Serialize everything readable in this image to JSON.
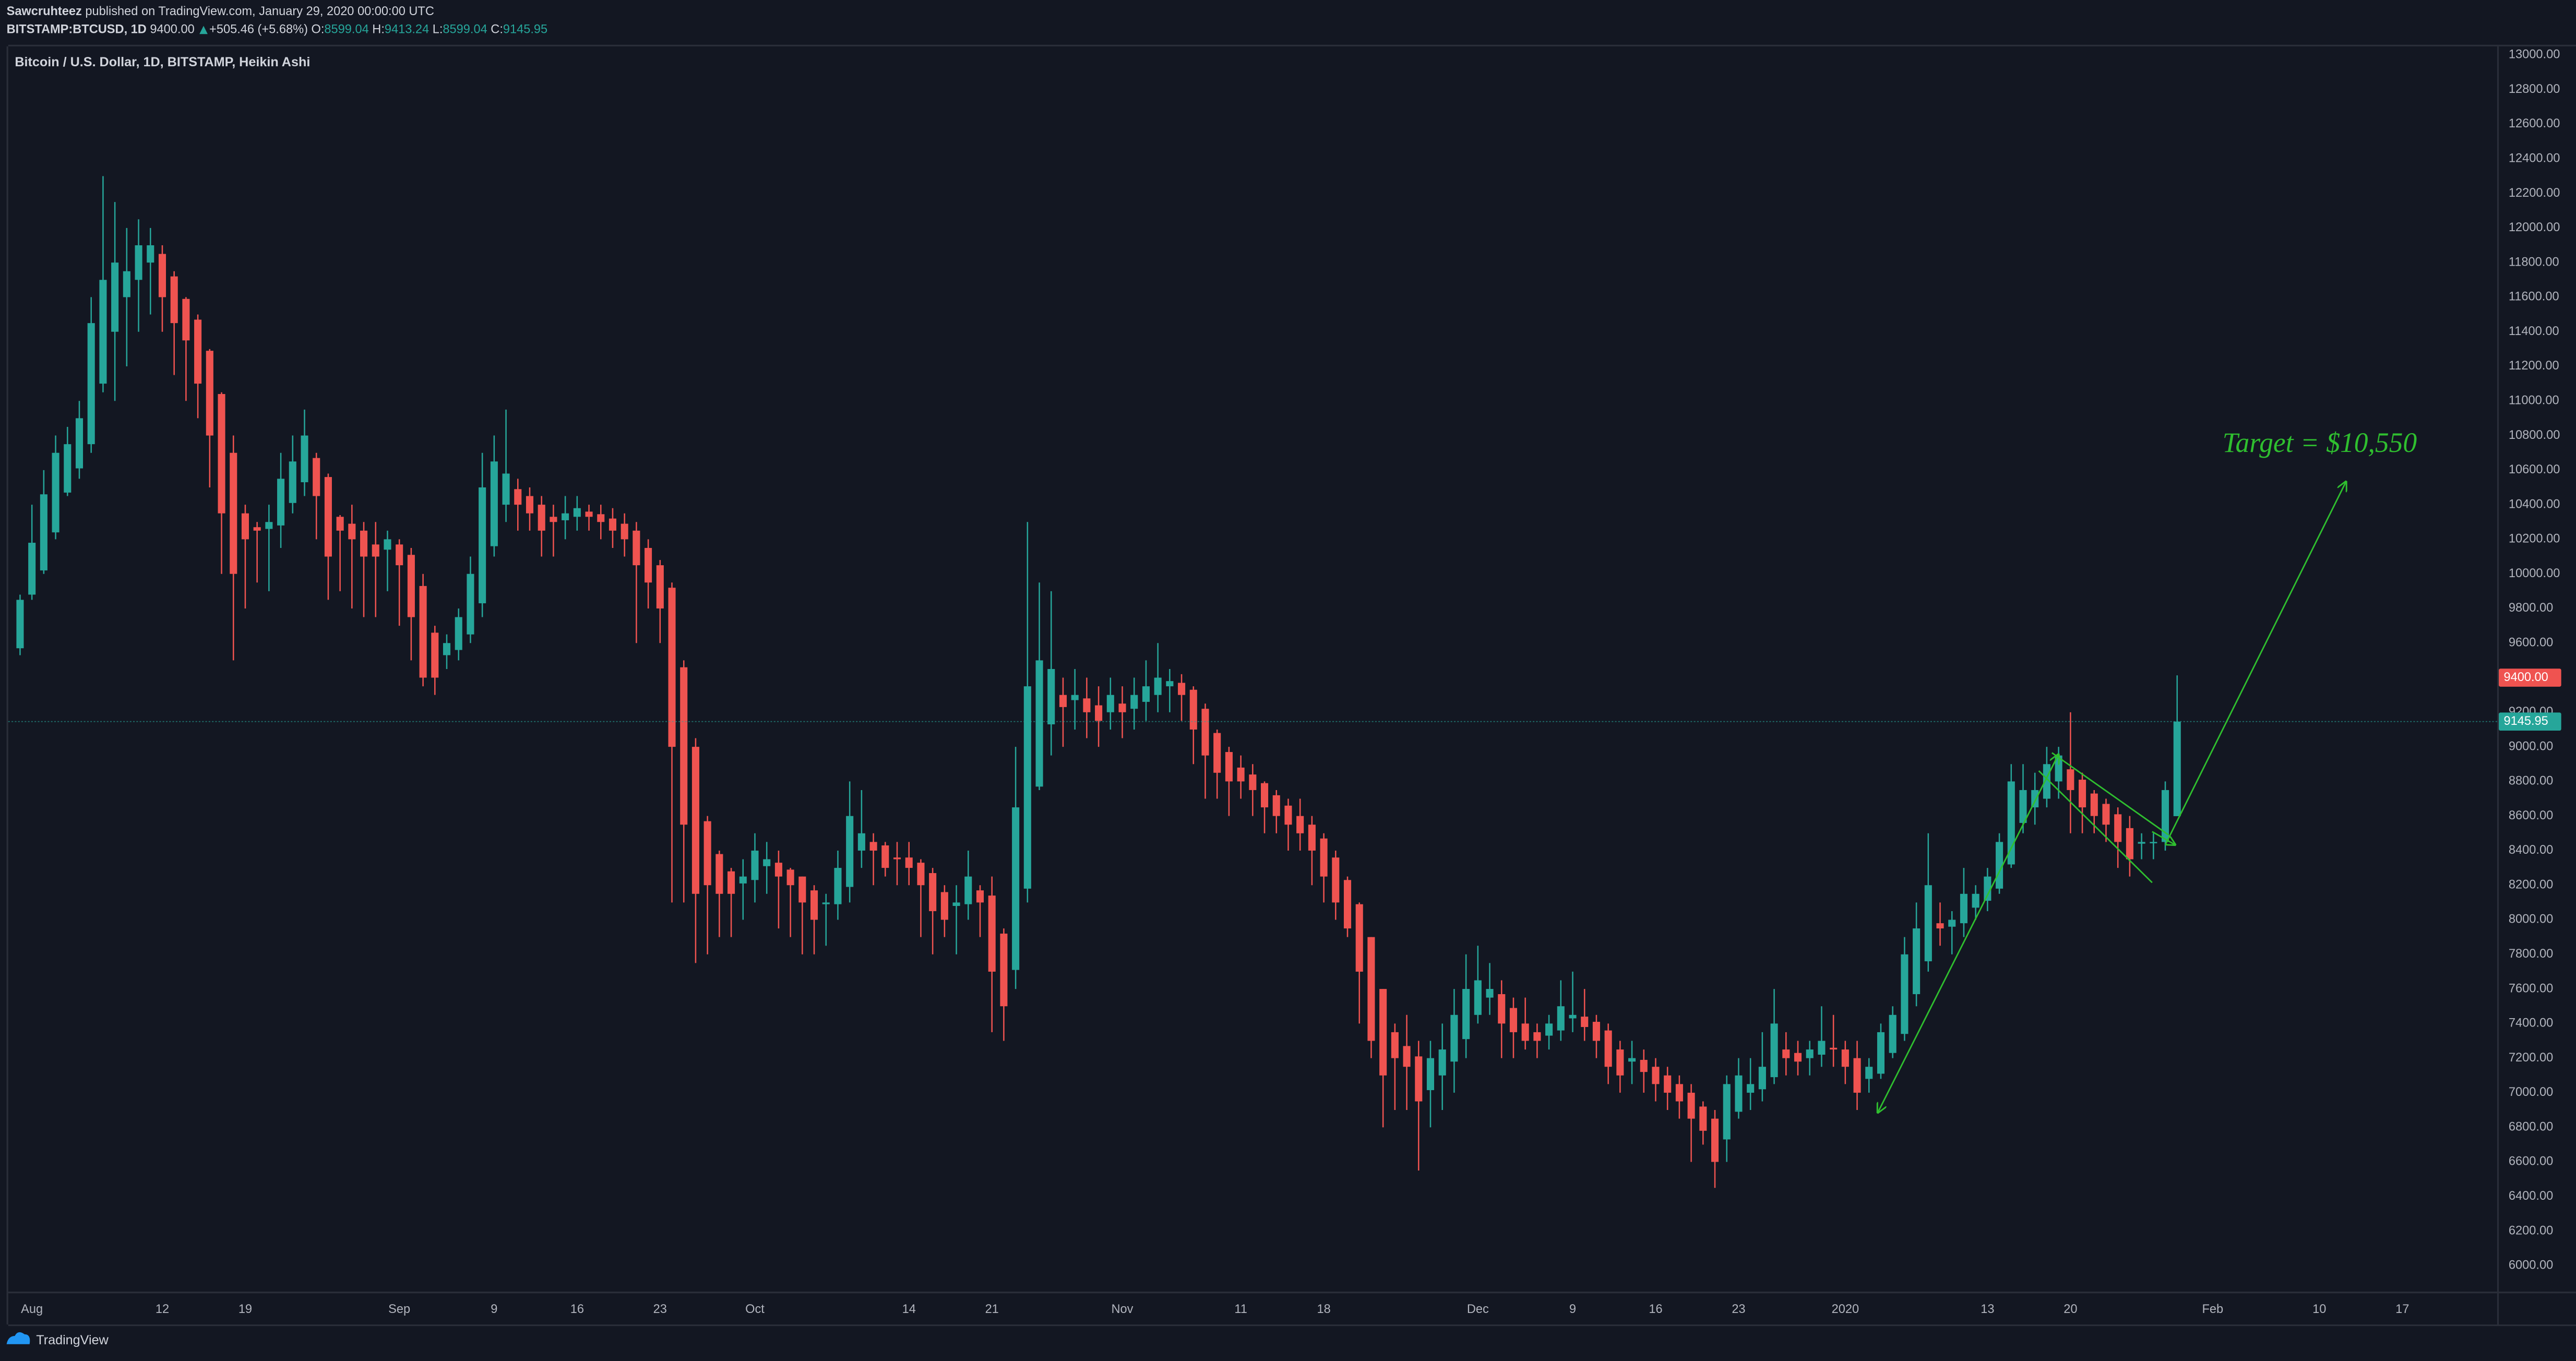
{
  "header": {
    "author": "Sawcruhteez",
    "published": "published on TradingView.com, January 29, 2020 00:00:00 UTC",
    "symbol": "BITSTAMP:BTCUSD, 1D",
    "price": "9400.00",
    "change": "+505.46 (+5.68%)",
    "ohlc": [
      {
        "key": "O:",
        "value": "8599.04"
      },
      {
        "key": "H:",
        "value": "9413.24"
      },
      {
        "key": "L:",
        "value": "8599.04"
      },
      {
        "key": "C:",
        "value": "9145.95"
      }
    ]
  },
  "footer": {
    "brand": "TradingView"
  },
  "chart_data": {
    "type": "candlestick",
    "title": "Bitcoin / U.S. Dollar, 1D, BITSTAMP, Heikin Ashi",
    "up_color": "#26a69a",
    "down_color": "#ef5350",
    "x": [
      "2019-07-31",
      "2019-08-01",
      "2019-08-02",
      "2019-08-03",
      "2019-08-04",
      "2019-08-05",
      "2019-08-06",
      "2019-08-07",
      "2019-08-08",
      "2019-08-09",
      "2019-08-10",
      "2019-08-11",
      "2019-08-12",
      "2019-08-13",
      "2019-08-14",
      "2019-08-15",
      "2019-08-16",
      "2019-08-17",
      "2019-08-18",
      "2019-08-19",
      "2019-08-20",
      "2019-08-21",
      "2019-08-22",
      "2019-08-23",
      "2019-08-24",
      "2019-08-25",
      "2019-08-26",
      "2019-08-27",
      "2019-08-28",
      "2019-08-29",
      "2019-08-30",
      "2019-08-31",
      "2019-09-01",
      "2019-09-02",
      "2019-09-03",
      "2019-09-04",
      "2019-09-05",
      "2019-09-06",
      "2019-09-07",
      "2019-09-08",
      "2019-09-09",
      "2019-09-10",
      "2019-09-11",
      "2019-09-12",
      "2019-09-13",
      "2019-09-14",
      "2019-09-15",
      "2019-09-16",
      "2019-09-17",
      "2019-09-18",
      "2019-09-19",
      "2019-09-20",
      "2019-09-21",
      "2019-09-22",
      "2019-09-23",
      "2019-09-24",
      "2019-09-25",
      "2019-09-26",
      "2019-09-27",
      "2019-09-28",
      "2019-09-29",
      "2019-09-30",
      "2019-10-01",
      "2019-10-02",
      "2019-10-03",
      "2019-10-04",
      "2019-10-05",
      "2019-10-06",
      "2019-10-07",
      "2019-10-08",
      "2019-10-09",
      "2019-10-10",
      "2019-10-11",
      "2019-10-12",
      "2019-10-13",
      "2019-10-14",
      "2019-10-15",
      "2019-10-16",
      "2019-10-17",
      "2019-10-18",
      "2019-10-19",
      "2019-10-20",
      "2019-10-21",
      "2019-10-22",
      "2019-10-23",
      "2019-10-24",
      "2019-10-25",
      "2019-10-26",
      "2019-10-27",
      "2019-10-28",
      "2019-10-29",
      "2019-10-30",
      "2019-10-31",
      "2019-11-01",
      "2019-11-02",
      "2019-11-03",
      "2019-11-04",
      "2019-11-05",
      "2019-11-06",
      "2019-11-07",
      "2019-11-08",
      "2019-11-09",
      "2019-11-10",
      "2019-11-11",
      "2019-11-12",
      "2019-11-13",
      "2019-11-14",
      "2019-11-15",
      "2019-11-16",
      "2019-11-17",
      "2019-11-18",
      "2019-11-19",
      "2019-11-20",
      "2019-11-21",
      "2019-11-22",
      "2019-11-23",
      "2019-11-24",
      "2019-11-25",
      "2019-11-26",
      "2019-11-27",
      "2019-11-28",
      "2019-11-29",
      "2019-11-30",
      "2019-12-01",
      "2019-12-02",
      "2019-12-03",
      "2019-12-04",
      "2019-12-05",
      "2019-12-06",
      "2019-12-07",
      "2019-12-08",
      "2019-12-09",
      "2019-12-10",
      "2019-12-11",
      "2019-12-12",
      "2019-12-13",
      "2019-12-14",
      "2019-12-15",
      "2019-12-16",
      "2019-12-17",
      "2019-12-18",
      "2019-12-19",
      "2019-12-20",
      "2019-12-21",
      "2019-12-22",
      "2019-12-23",
      "2019-12-24",
      "2019-12-25",
      "2019-12-26",
      "2019-12-27",
      "2019-12-28",
      "2019-12-29",
      "2019-12-30",
      "2019-12-31",
      "2020-01-01",
      "2020-01-02",
      "2020-01-03",
      "2020-01-04",
      "2020-01-05",
      "2020-01-06",
      "2020-01-07",
      "2020-01-08",
      "2020-01-09",
      "2020-01-10",
      "2020-01-11",
      "2020-01-12",
      "2020-01-13",
      "2020-01-14",
      "2020-01-15",
      "2020-01-16",
      "2020-01-17",
      "2020-01-18",
      "2020-01-19",
      "2020-01-20",
      "2020-01-21",
      "2020-01-22",
      "2020-01-23",
      "2020-01-24",
      "2020-01-25",
      "2020-01-26",
      "2020-01-27",
      "2020-01-28",
      "2020-01-29"
    ],
    "open": [
      9570,
      9880,
      10020,
      10240,
      10470,
      10610,
      10750,
      11100,
      11400,
      11600,
      11700,
      11800,
      11850,
      11720,
      11590,
      11470,
      11290,
      11040,
      10700,
      10350,
      10270,
      10260,
      10280,
      10410,
      10530,
      10670,
      10560,
      10330,
      10290,
      10250,
      10170,
      10140,
      10170,
      10110,
      9930,
      9660,
      9530,
      9560,
      9650,
      9830,
      10160,
      10400,
      10490,
      10450,
      10400,
      10330,
      10310,
      10330,
      10360,
      10345,
      10320,
      10290,
      10250,
      10150,
      10050,
      9920,
      9460,
      9000,
      8570,
      8380,
      8280,
      8210,
      8230,
      8310,
      8330,
      8290,
      8250,
      8170,
      8090,
      8090,
      8190,
      8400,
      8450,
      8430,
      8360,
      8360,
      8330,
      8270,
      8160,
      8080,
      8090,
      8170,
      8140,
      7920,
      7710,
      8180,
      8770,
      9130,
      9300,
      9270,
      9280,
      9240,
      9200,
      9250,
      9220,
      9260,
      9300,
      9350,
      9370,
      9330,
      9220,
      9080,
      8970,
      8880,
      8840,
      8790,
      8720,
      8660,
      8600,
      8550,
      8470,
      8360,
      8230,
      8090,
      7900,
      7600,
      7350,
      7270,
      7210,
      7015,
      7100,
      7180,
      7310,
      7450,
      7550,
      7570,
      7490,
      7400,
      7350,
      7330,
      7360,
      7430,
      7440,
      7410,
      7360,
      7250,
      7180,
      7190,
      7150,
      7100,
      7050,
      7000,
      6920,
      6850,
      6730,
      6890,
      7000,
      7020,
      7090,
      7250,
      7230,
      7200,
      7220,
      7260,
      7250,
      7200,
      7080,
      7110,
      7230,
      7340,
      7570,
      7760,
      7980,
      7960,
      7980,
      8070,
      8110,
      8180,
      8320,
      8560,
      8650,
      8700,
      8800,
      8870,
      8810,
      8730,
      8670,
      8610,
      8530,
      8440,
      8445,
      8450,
      8599.04
    ],
    "high": [
      9880,
      10400,
      10600,
      10800,
      10850,
      11000,
      11600,
      12300,
      12150,
      12000,
      12050,
      12000,
      11900,
      11750,
      11600,
      11500,
      11300,
      11050,
      10800,
      10400,
      10300,
      10400,
      10700,
      10800,
      10950,
      10700,
      10580,
      10340,
      10400,
      10300,
      10300,
      10250,
      10200,
      10150,
      10000,
      9700,
      9650,
      9800,
      10100,
      10700,
      10800,
      10950,
      10550,
      10500,
      10450,
      10400,
      10450,
      10450,
      10400,
      10400,
      10380,
      10350,
      10300,
      10200,
      10080,
      9950,
      9500,
      9050,
      8600,
      8400,
      8300,
      8350,
      8500,
      8450,
      8400,
      8300,
      8250,
      8200,
      8150,
      8400,
      8800,
      8750,
      8500,
      8450,
      8450,
      8450,
      8350,
      8300,
      8200,
      8200,
      8400,
      8200,
      8250,
      7950,
      9000,
      10300,
      9950,
      9900,
      9400,
      9450,
      9400,
      9350,
      9400,
      9350,
      9400,
      9500,
      9600,
      9450,
      9420,
      9350,
      9250,
      9100,
      9000,
      8950,
      8900,
      8800,
      8750,
      8700,
      8700,
      8600,
      8500,
      8400,
      8250,
      8100,
      7900,
      7600,
      7400,
      7450,
      7300,
      7300,
      7400,
      7600,
      7800,
      7850,
      7750,
      7650,
      7550,
      7550,
      7400,
      7450,
      7650,
      7700,
      7600,
      7450,
      7400,
      7300,
      7300,
      7250,
      7200,
      7150,
      7100,
      7050,
      6950,
      6900,
      7100,
      7200,
      7200,
      7350,
      7600,
      7350,
      7300,
      7300,
      7500,
      7450,
      7300,
      7300,
      7200,
      7400,
      7500,
      7900,
      8100,
      8500,
      8100,
      8050,
      8300,
      8200,
      8300,
      8500,
      8900,
      8900,
      8850,
      9000,
      9000,
      9200,
      8850,
      8750,
      8700,
      8650,
      8600,
      8500,
      8500,
      8800,
      9413.24
    ],
    "low": [
      9530,
      9850,
      10000,
      10200,
      10450,
      10550,
      10700,
      11050,
      11000,
      11200,
      11400,
      11500,
      11400,
      11150,
      11000,
      10900,
      10500,
      10000,
      9500,
      9800,
      9950,
      9900,
      10150,
      10350,
      10450,
      10200,
      9850,
      9900,
      9800,
      9750,
      9750,
      9900,
      9700,
      9500,
      9350,
      9300,
      9450,
      9500,
      9600,
      9750,
      10100,
      10300,
      10250,
      10250,
      10100,
      10100,
      10200,
      10250,
      10250,
      10200,
      10150,
      10100,
      9600,
      9800,
      9600,
      8100,
      8100,
      7750,
      7800,
      7900,
      7900,
      8000,
      8100,
      8150,
      7950,
      7900,
      7800,
      7800,
      7850,
      8000,
      8100,
      8300,
      8200,
      8250,
      8200,
      8200,
      7900,
      7800,
      7900,
      7800,
      8000,
      7900,
      7350,
      7300,
      7600,
      8100,
      8750,
      8950,
      9000,
      9100,
      9050,
      9000,
      9100,
      9050,
      9100,
      9150,
      9200,
      9200,
      9150,
      8900,
      8700,
      8700,
      8600,
      8700,
      8600,
      8500,
      8500,
      8400,
      8400,
      8200,
      8100,
      8000,
      7900,
      7400,
      7200,
      6800,
      6900,
      6900,
      6550,
      6800,
      6900,
      7000,
      7200,
      7400,
      7450,
      7200,
      7200,
      7250,
      7200,
      7250,
      7300,
      7350,
      7300,
      7200,
      7050,
      7000,
      7050,
      7000,
      6950,
      6900,
      6850,
      6600,
      6700,
      6450,
      6600,
      6850,
      6900,
      6950,
      7050,
      7100,
      7100,
      7100,
      7150,
      7150,
      7050,
      6900,
      7000,
      7080,
      7200,
      7300,
      7500,
      7700,
      7850,
      7800,
      7900,
      8000,
      8050,
      8150,
      8300,
      8500,
      8550,
      8650,
      8700,
      8500,
      8500,
      8500,
      8450,
      8300,
      8250,
      8350,
      8350,
      8400,
      8599.04
    ],
    "close": [
      9850,
      10180,
      10460,
      10700,
      10750,
      10900,
      11450,
      11700,
      11800,
      11750,
      11900,
      11900,
      11600,
      11450,
      11350,
      11100,
      10800,
      10350,
      10000,
      10200,
      10250,
      10300,
      10550,
      10650,
      10800,
      10450,
      10100,
      10250,
      10200,
      10100,
      10100,
      10200,
      10050,
      9750,
      9400,
      9400,
      9600,
      9750,
      10000,
      10500,
      10650,
      10580,
      10400,
      10350,
      10250,
      10300,
      10350,
      10380,
      10330,
      10300,
      10250,
      10200,
      10050,
      9950,
      9800,
      9000,
      8550,
      8150,
      8200,
      8150,
      8150,
      8250,
      8400,
      8350,
      8250,
      8200,
      8100,
      8000,
      8100,
      8300,
      8600,
      8500,
      8400,
      8300,
      8350,
      8300,
      8200,
      8050,
      8000,
      8100,
      8250,
      8100,
      7700,
      7500,
      8650,
      9350,
      9500,
      9450,
      9230,
      9300,
      9200,
      9150,
      9300,
      9200,
      9300,
      9350,
      9400,
      9380,
      9300,
      9100,
      8950,
      8850,
      8800,
      8800,
      8750,
      8650,
      8600,
      8550,
      8500,
      8400,
      8250,
      8100,
      7950,
      7700,
      7300,
      7100,
      7200,
      7150,
      6950,
      7200,
      7250,
      7450,
      7600,
      7650,
      7600,
      7400,
      7350,
      7300,
      7300,
      7400,
      7500,
      7450,
      7380,
      7300,
      7150,
      7100,
      7200,
      7120,
      7050,
      7000,
      6950,
      6850,
      6780,
      6600,
      7050,
      7100,
      7050,
      7150,
      7400,
      7200,
      7180,
      7250,
      7300,
      7250,
      7150,
      7000,
      7150,
      7350,
      7450,
      7800,
      7950,
      8200,
      7950,
      8000,
      8150,
      8150,
      8250,
      8450,
      8800,
      8750,
      8750,
      8900,
      8950,
      8750,
      8650,
      8600,
      8550,
      8450,
      8350,
      8450,
      8450,
      8750,
      9145.95
    ],
    "xlim": [
      "2019-07-30",
      "2020-02-25"
    ],
    "xticks": [
      {
        "value": "2019-08-01",
        "label": "Aug"
      },
      {
        "value": "2019-08-12",
        "label": "12"
      },
      {
        "value": "2019-08-19",
        "label": "19"
      },
      {
        "value": "2019-09-01",
        "label": "Sep"
      },
      {
        "value": "2019-09-09",
        "label": "9"
      },
      {
        "value": "2019-09-16",
        "label": "16"
      },
      {
        "value": "2019-09-23",
        "label": "23"
      },
      {
        "value": "2019-10-01",
        "label": "Oct"
      },
      {
        "value": "2019-10-14",
        "label": "14"
      },
      {
        "value": "2019-10-21",
        "label": "21"
      },
      {
        "value": "2019-11-01",
        "label": "Nov"
      },
      {
        "value": "2019-11-11",
        "label": "11"
      },
      {
        "value": "2019-11-18",
        "label": "18"
      },
      {
        "value": "2019-12-01",
        "label": "Dec"
      },
      {
        "value": "2019-12-09",
        "label": "9"
      },
      {
        "value": "2019-12-16",
        "label": "16"
      },
      {
        "value": "2019-12-23",
        "label": "23"
      },
      {
        "value": "2020-01-01",
        "label": "2020"
      },
      {
        "value": "2020-01-13",
        "label": "13"
      },
      {
        "value": "2020-01-20",
        "label": "20"
      },
      {
        "value": "2020-02-01",
        "label": "Feb"
      },
      {
        "value": "2020-02-10",
        "label": "10"
      },
      {
        "value": "2020-02-17",
        "label": "17"
      }
    ],
    "ylim": [
      5850,
      13050
    ],
    "yticks": [
      {
        "value": 13000,
        "label": "13000.00"
      },
      {
        "value": 12800,
        "label": "12800.00"
      },
      {
        "value": 12600,
        "label": "12600.00"
      },
      {
        "value": 12400,
        "label": "12400.00"
      },
      {
        "value": 12200,
        "label": "12200.00"
      },
      {
        "value": 12000,
        "label": "12000.00"
      },
      {
        "value": 11800,
        "label": "11800.00"
      },
      {
        "value": 11600,
        "label": "11600.00"
      },
      {
        "value": 11400,
        "label": "11400.00"
      },
      {
        "value": 11200,
        "label": "11200.00"
      },
      {
        "value": 11000,
        "label": "11000.00"
      },
      {
        "value": 10800,
        "label": "10800.00"
      },
      {
        "value": 10600,
        "label": "10600.00"
      },
      {
        "value": 10400,
        "label": "10400.00"
      },
      {
        "value": 10200,
        "label": "10200.00"
      },
      {
        "value": 10000,
        "label": "10000.00"
      },
      {
        "value": 9800,
        "label": "9800.00"
      },
      {
        "value": 9600,
        "label": "9600.00"
      },
      {
        "value": 9200,
        "label": "9200.00"
      },
      {
        "value": 9000,
        "label": "9000.00"
      },
      {
        "value": 8800,
        "label": "8800.00"
      },
      {
        "value": 8600,
        "label": "8600.00"
      },
      {
        "value": 8400,
        "label": "8400.00"
      },
      {
        "value": 8200,
        "label": "8200.00"
      },
      {
        "value": 8000,
        "label": "8000.00"
      },
      {
        "value": 7800,
        "label": "7800.00"
      },
      {
        "value": 7600,
        "label": "7600.00"
      },
      {
        "value": 7400,
        "label": "7400.00"
      },
      {
        "value": 7200,
        "label": "7200.00"
      },
      {
        "value": 7000,
        "label": "7000.00"
      },
      {
        "value": 6800,
        "label": "6800.00"
      },
      {
        "value": 6600,
        "label": "6600.00"
      },
      {
        "value": 6400,
        "label": "6400.00"
      },
      {
        "value": 6200,
        "label": "6200.00"
      },
      {
        "value": 6000,
        "label": "6000.00"
      }
    ],
    "grid": false,
    "price_markers": [
      {
        "value": 9400,
        "label": "9400.00",
        "color": "#ef5350"
      },
      {
        "value": 9145.95,
        "color": "#26a69a",
        "line": true
      }
    ],
    "annotations": [
      {
        "text": "Target = $10,550"
      }
    ]
  }
}
